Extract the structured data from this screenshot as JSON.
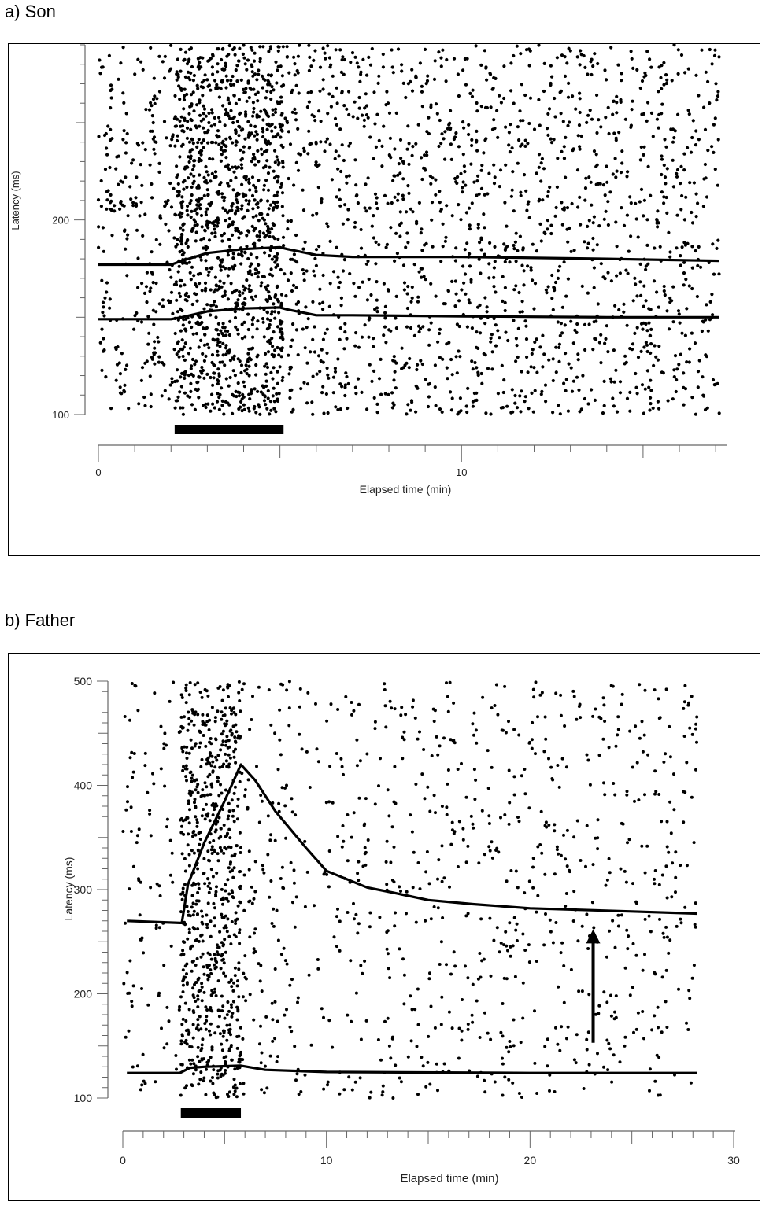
{
  "chart_data": [
    {
      "panel_title": "a) Son",
      "type": "scatter",
      "xlabel": "Elapsed time (min)",
      "ylabel": "Latency (ms)",
      "xlim": [
        0,
        17.3
      ],
      "ylim": [
        100,
        290
      ],
      "x_ticks": [
        0,
        10
      ],
      "y_ticks": [
        100,
        200
      ],
      "grid": false,
      "legend": "none",
      "stimulus_bar": {
        "start": 2.1,
        "end": 5.1
      },
      "series": [
        {
          "type": "line",
          "x": [
            0,
            2.0,
            2.3,
            3.0,
            4.0,
            5.0,
            5.2,
            6.0,
            7.0,
            10.0,
            14.0,
            17.1
          ],
          "y": [
            177,
            177,
            179,
            183,
            185,
            186,
            185,
            182,
            181,
            181,
            180,
            179
          ]
        },
        {
          "type": "line",
          "x": [
            0,
            2.0,
            2.3,
            3.0,
            4.0,
            5.0,
            5.2,
            6.0,
            7.0,
            10.0,
            14.0,
            17.1
          ],
          "y": [
            149,
            149,
            150,
            153,
            154.5,
            155,
            154,
            151,
            151,
            150.5,
            150,
            150
          ]
        }
      ],
      "marker_color": "#000000"
    },
    {
      "panel_title": "b) Father",
      "type": "scatter",
      "xlabel": "Elapsed time (min)",
      "ylabel": "Latency (ms)",
      "xlim": [
        0,
        30
      ],
      "ylim": [
        100,
        500
      ],
      "x_ticks": [
        0,
        10,
        20,
        30
      ],
      "y_ticks": [
        100,
        200,
        300,
        400,
        500
      ],
      "grid": false,
      "legend": "none",
      "stimulus_bar": {
        "start": 2.85,
        "end": 5.8
      },
      "series": [
        {
          "type": "line",
          "x": [
            0.2,
            2.8,
            2.9,
            3.2,
            4.0,
            5.0,
            5.8,
            6.5,
            7.5,
            9.0,
            10.0,
            12.0,
            13.3,
            15.0,
            17.2,
            20.0,
            25.0,
            28.2
          ],
          "y": [
            270,
            268,
            268,
            305,
            345,
            385,
            420,
            405,
            375,
            340,
            318,
            302,
            297,
            290,
            286,
            282,
            279,
            277
          ]
        },
        {
          "type": "line",
          "x": [
            0.2,
            2.8,
            3.3,
            4.0,
            5.8,
            7.0,
            10.0,
            20.0,
            28.2
          ],
          "y": [
            124,
            124,
            129,
            130,
            131,
            127,
            125,
            124,
            124
          ]
        }
      ],
      "annotation_arrow": {
        "x": 23.1,
        "y_from": 153,
        "y_to": 262
      },
      "marker_color": "#000000"
    }
  ]
}
